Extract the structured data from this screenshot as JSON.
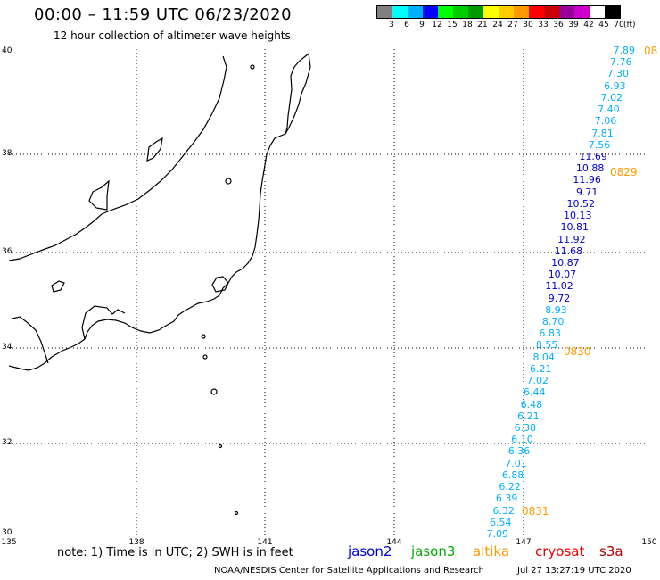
{
  "header": {
    "title": "00:00 – 11:59 UTC 06/23/2020",
    "subtitle": "12 hour collection of altimeter wave heights"
  },
  "color_scale": {
    "colors": [
      "#808080",
      "#00ffff",
      "#00b0ff",
      "#0000ff",
      "#00ff00",
      "#00cc00",
      "#009900",
      "#ffff00",
      "#ffcc00",
      "#ff9900",
      "#ff0000",
      "#cc0000",
      "#990099",
      "#cc00cc",
      "#ffffff",
      "#000000"
    ],
    "labels": [
      "3",
      "6",
      "9",
      "12",
      "15",
      "18",
      "21",
      "24",
      "27",
      "30",
      "33",
      "36",
      "39",
      "42",
      "45",
      "70"
    ],
    "unit": "(ft)"
  },
  "axes": {
    "lat_labels": [
      "40",
      "38",
      "36",
      "34",
      "32",
      "30"
    ],
    "lon_labels": [
      "135",
      "138",
      "141",
      "144",
      "147",
      "150"
    ]
  },
  "observations": [
    {
      "v": "7.89",
      "c": "#00b0ff"
    },
    {
      "v": "7.76",
      "c": "#00b0ff"
    },
    {
      "v": "7.30",
      "c": "#00b0ff"
    },
    {
      "v": "6.93",
      "c": "#00b0ff"
    },
    {
      "v": "7.02",
      "c": "#00b0ff"
    },
    {
      "v": "7.40",
      "c": "#00b0ff"
    },
    {
      "v": "7.06",
      "c": "#00b0ff"
    },
    {
      "v": "7.81",
      "c": "#00b0ff"
    },
    {
      "v": "7.56",
      "c": "#00b0ff"
    },
    {
      "v": "11.69",
      "c": "#0000cc"
    },
    {
      "v": "10.88",
      "c": "#0000cc"
    },
    {
      "v": "11.96",
      "c": "#0000cc"
    },
    {
      "v": "9.71",
      "c": "#0000cc"
    },
    {
      "v": "10.52",
      "c": "#0000cc"
    },
    {
      "v": "10.13",
      "c": "#0000cc"
    },
    {
      "v": "10.81",
      "c": "#0000cc"
    },
    {
      "v": "11.92",
      "c": "#0000cc"
    },
    {
      "v": "11.68",
      "c": "#0000cc"
    },
    {
      "v": "10.87",
      "c": "#0000cc"
    },
    {
      "v": "10.07",
      "c": "#0000cc"
    },
    {
      "v": "11.02",
      "c": "#0000cc"
    },
    {
      "v": "9.72",
      "c": "#0000cc"
    },
    {
      "v": "8.93",
      "c": "#00b0ff"
    },
    {
      "v": "8.70",
      "c": "#00b0ff"
    },
    {
      "v": "6.83",
      "c": "#00b0ff"
    },
    {
      "v": "8.55",
      "c": "#00b0ff"
    },
    {
      "v": "8.04",
      "c": "#00b0ff"
    },
    {
      "v": "6.21",
      "c": "#00b0ff"
    },
    {
      "v": "7.02",
      "c": "#00b0ff"
    },
    {
      "v": "6.44",
      "c": "#00b0ff"
    },
    {
      "v": "6.48",
      "c": "#00b0ff"
    },
    {
      "v": "6.21",
      "c": "#00b0ff"
    },
    {
      "v": "6.38",
      "c": "#00b0ff"
    },
    {
      "v": "6.10",
      "c": "#00b0ff"
    },
    {
      "v": "6.36",
      "c": "#00b0ff"
    },
    {
      "v": "7.01",
      "c": "#00b0ff"
    },
    {
      "v": "6.88",
      "c": "#00b0ff"
    },
    {
      "v": "6.22",
      "c": "#00b0ff"
    },
    {
      "v": "6.39",
      "c": "#00b0ff"
    },
    {
      "v": "6.32",
      "c": "#00b0ff"
    },
    {
      "v": "6.54",
      "c": "#00b0ff"
    },
    {
      "v": "7.09",
      "c": "#00b0ff"
    }
  ],
  "pass_times": [
    "08",
    "0829",
    "0830",
    "0831"
  ],
  "note": "note: 1) Time is in UTC; 2) SWH is in feet",
  "legend": [
    {
      "label": "jason2",
      "color": "#0000cc"
    },
    {
      "label": "jason3",
      "color": "#00aa00"
    },
    {
      "label": "altika",
      "color": "#ff9900"
    },
    {
      "label": "cryosat",
      "color": "#ee0000"
    },
    {
      "label": "s3a",
      "color": "#aa0000"
    }
  ],
  "footer": {
    "source": "NOAA/NESDIS Center for Satellite Applications and Research",
    "timestamp": "Jul 27 13:27:19 UTC 2020"
  }
}
